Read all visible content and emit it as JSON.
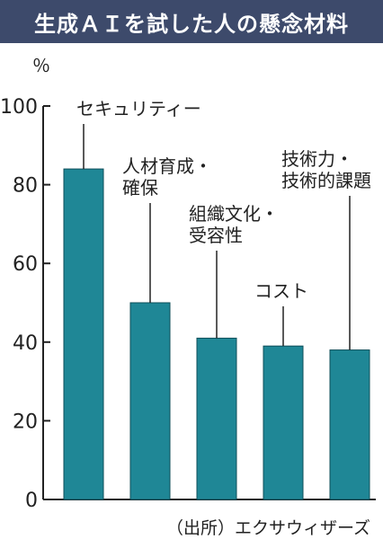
{
  "title": "生成ＡＩを試した人の懸念材料",
  "unit": "％",
  "source": "（出所）エクサウィザーズ",
  "colors": {
    "bar": "#1f8796",
    "bar_edge": "#0f4f5a",
    "title_bg": "#3d4a6b"
  },
  "chart_data": {
    "type": "bar",
    "title": "生成ＡＩを試した人の懸念材料",
    "categories": [
      "セキュリティー",
      "人材育成・確保",
      "組織文化・受容性",
      "コスト",
      "技術力・技術的課題"
    ],
    "category_lines": [
      [
        "セキュリティー"
      ],
      [
        "人材育成・",
        "確保"
      ],
      [
        "組織文化・",
        "受容性"
      ],
      [
        "コスト"
      ],
      [
        "技術力・",
        "技術的課題"
      ]
    ],
    "values": [
      84,
      50,
      41,
      39,
      38
    ],
    "ylabel": "％",
    "ylim": [
      0,
      100
    ],
    "yticks": [
      0,
      20,
      40,
      60,
      80,
      100
    ],
    "grid": false,
    "legend": "none"
  }
}
